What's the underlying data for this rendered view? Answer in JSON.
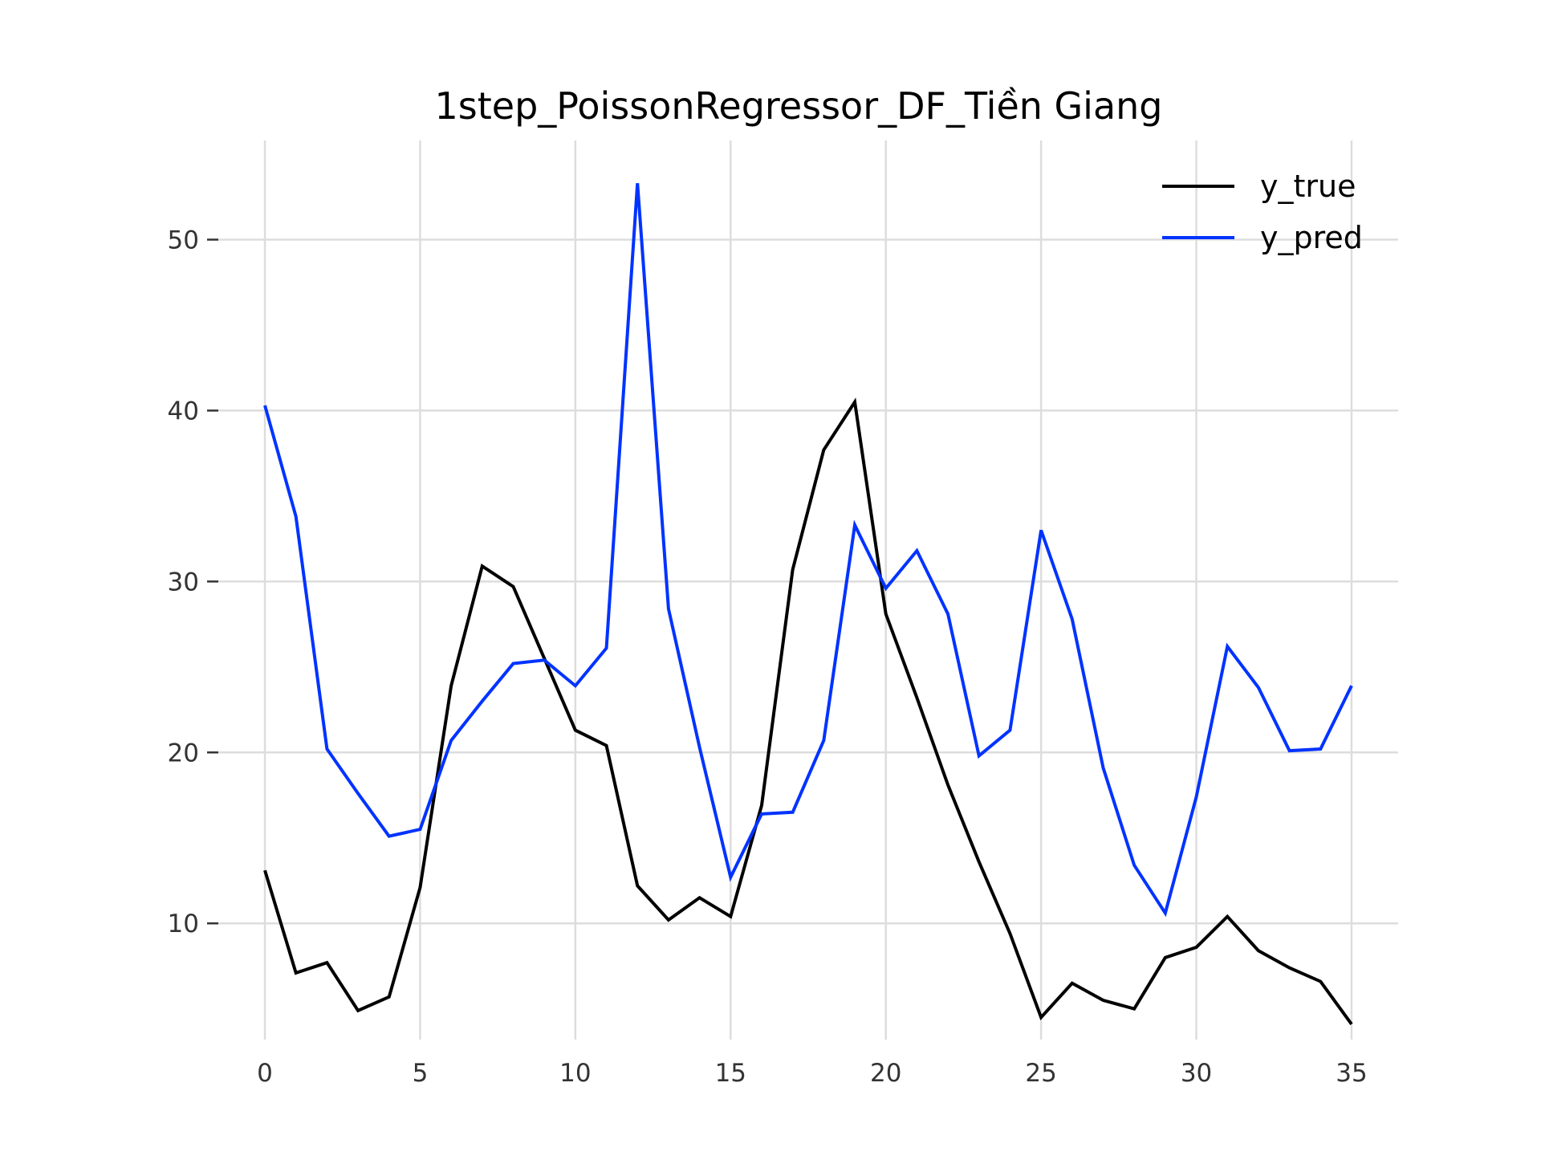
{
  "chart_data": {
    "type": "line",
    "title": "1step_PoissonRegressor_DF_Tiền Giang",
    "xlabel": "",
    "ylabel": "",
    "x": [
      0,
      1,
      2,
      3,
      4,
      5,
      6,
      7,
      8,
      9,
      10,
      11,
      12,
      13,
      14,
      15,
      16,
      17,
      18,
      19,
      20,
      21,
      22,
      23,
      24,
      25,
      26,
      27,
      28,
      29,
      30,
      31,
      32,
      33,
      34,
      35
    ],
    "xticks": [
      0,
      5,
      10,
      15,
      20,
      25,
      30,
      35
    ],
    "yticks": [
      10,
      20,
      30,
      40,
      50
    ],
    "xlim": [
      -1.5,
      36.5
    ],
    "ylim": [
      3.2,
      55.8
    ],
    "grid": true,
    "legend_position": "top-right",
    "series": [
      {
        "name": "y_true",
        "color": "#000000",
        "values": [
          13.1,
          7.1,
          7.7,
          4.9,
          5.7,
          12.1,
          23.9,
          30.9,
          29.7,
          25.5,
          21.3,
          20.4,
          12.2,
          10.2,
          11.5,
          10.4,
          16.9,
          30.7,
          37.7,
          40.5,
          28.1,
          23.2,
          18.1,
          13.6,
          9.4,
          4.5,
          6.5,
          5.5,
          5.0,
          8.0,
          8.6,
          10.4,
          8.4,
          7.4,
          6.6,
          4.1
        ]
      },
      {
        "name": "y_pred",
        "color": "#0033ff",
        "values": [
          40.3,
          33.8,
          20.2,
          17.6,
          15.1,
          15.5,
          20.7,
          23.0,
          25.2,
          25.4,
          23.9,
          26.1,
          53.3,
          28.4,
          20.3,
          12.7,
          16.4,
          16.5,
          20.7,
          33.3,
          29.6,
          31.8,
          28.1,
          19.8,
          21.3,
          33.0,
          27.8,
          19.1,
          13.4,
          10.6,
          17.4,
          26.2,
          23.8,
          20.1,
          20.2,
          23.9
        ]
      }
    ]
  }
}
